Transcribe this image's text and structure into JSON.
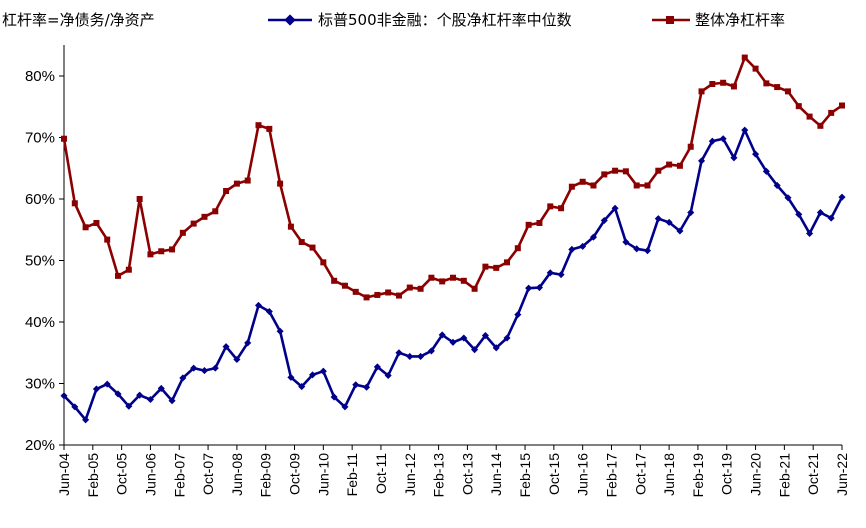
{
  "chart_data": {
    "type": "line",
    "title": "",
    "ylabel": "杠杆率=净债务/净资产",
    "xlabel": "",
    "ylim": [
      0.2,
      0.85
    ],
    "y_ticks": [
      "20%",
      "30%",
      "40%",
      "50%",
      "60%",
      "70%",
      "80%"
    ],
    "x_ticks": [
      "Jun-04",
      "Feb-05",
      "Oct-05",
      "Jun-06",
      "Feb-07",
      "Oct-07",
      "Jun-08",
      "Feb-09",
      "Oct-09",
      "Jun-10",
      "Feb-11",
      "Oct-11",
      "Jun-12",
      "Feb-13",
      "Oct-13",
      "Jun-14",
      "Feb-15",
      "Oct-15",
      "Jun-16",
      "Feb-17",
      "Oct-17",
      "Jun-18",
      "Feb-19",
      "Oct-19",
      "Jun-20",
      "Feb-21",
      "Oct-21",
      "Jun-22"
    ],
    "legend_position": "top",
    "grid": false,
    "series": [
      {
        "name": "标普500非金融：个股净杠杆率中位数",
        "color": "#00008B",
        "marker": "diamond",
        "values": [
          0.28,
          0.262,
          0.241,
          0.291,
          0.299,
          0.283,
          0.263,
          0.281,
          0.274,
          0.292,
          0.272,
          0.309,
          0.325,
          0.321,
          0.325,
          0.36,
          0.339,
          0.366,
          0.427,
          0.417,
          0.385,
          0.31,
          0.295,
          0.314,
          0.32,
          0.278,
          0.262,
          0.298,
          0.294,
          0.327,
          0.313,
          0.35,
          0.344,
          0.344,
          0.353,
          0.379,
          0.367,
          0.374,
          0.355,
          0.378,
          0.358,
          0.374,
          0.412,
          0.455,
          0.456,
          0.48,
          0.477,
          0.518,
          0.523,
          0.538,
          0.565,
          0.585,
          0.53,
          0.519,
          0.516,
          0.568,
          0.562,
          0.548,
          0.578,
          0.662,
          0.694,
          0.698,
          0.667,
          0.712,
          0.673,
          0.645,
          0.622,
          0.602,
          0.575,
          0.544,
          0.578,
          0.569,
          0.603
        ]
      },
      {
        "name": "整体净杠杆率",
        "color": "#8B0000",
        "marker": "square",
        "values": [
          0.698,
          0.593,
          0.554,
          0.561,
          0.534,
          0.475,
          0.485,
          0.6,
          0.51,
          0.515,
          0.518,
          0.545,
          0.56,
          0.571,
          0.58,
          0.613,
          0.625,
          0.63,
          0.72,
          0.714,
          0.625,
          0.555,
          0.53,
          0.521,
          0.497,
          0.467,
          0.459,
          0.449,
          0.44,
          0.444,
          0.448,
          0.443,
          0.456,
          0.454,
          0.472,
          0.466,
          0.472,
          0.467,
          0.454,
          0.49,
          0.488,
          0.497,
          0.52,
          0.558,
          0.561,
          0.588,
          0.585,
          0.62,
          0.628,
          0.622,
          0.64,
          0.646,
          0.645,
          0.622,
          0.622,
          0.646,
          0.656,
          0.654,
          0.685,
          0.775,
          0.787,
          0.789,
          0.783,
          0.83,
          0.812,
          0.788,
          0.782,
          0.775,
          0.751,
          0.734,
          0.719,
          0.74,
          0.752
        ]
      }
    ]
  }
}
